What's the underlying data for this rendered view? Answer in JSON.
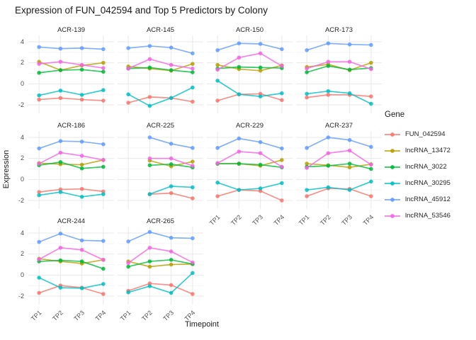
{
  "title": "Expression of FUN_042594 and Top 5 Predictors by Colony",
  "chart_data": {
    "type": "line",
    "title": "Expression of FUN_042594 and Top 5 Predictors by Colony",
    "xlabel": "Timepoint",
    "ylabel": "Expression",
    "legend_title": "Gene",
    "legend_position": "right",
    "grid": true,
    "x_categories": [
      "TP1",
      "TP2",
      "TP3",
      "TP4"
    ],
    "yticks": [
      4,
      2,
      0,
      -2
    ],
    "ylim": [
      -2.8,
      4.6
    ],
    "genes": [
      {
        "name": "FUN_042594",
        "color": "#F8766D"
      },
      {
        "name": "lncRNA_13472",
        "color": "#B79F00"
      },
      {
        "name": "lncRNA_3022",
        "color": "#00BA38"
      },
      {
        "name": "lncRNA_30295",
        "color": "#00BFC4"
      },
      {
        "name": "lncRNA_45912",
        "color": "#619CFF"
      },
      {
        "name": "lncRNA_53546",
        "color": "#F564E3"
      }
    ],
    "facets": [
      {
        "name": "ACR-139",
        "series": {
          "FUN_042594": [
            -1.5,
            -1.35,
            -1.5,
            -1.6
          ],
          "lncRNA_13472": [
            2.1,
            1.3,
            1.75,
            2.0
          ],
          "lncRNA_3022": [
            1.05,
            1.3,
            1.35,
            1.15
          ],
          "lncRNA_30295": [
            -1.1,
            -0.65,
            -1.05,
            -0.6
          ],
          "lncRNA_45912": [
            3.5,
            3.35,
            3.4,
            3.3
          ],
          "lncRNA_53546": [
            1.9,
            2.1,
            1.8,
            1.5
          ]
        }
      },
      {
        "name": "ACR-145",
        "series": {
          "FUN_042594": [
            -1.8,
            -1.25,
            -1.35,
            -1.7
          ],
          "lncRNA_13472": [
            1.65,
            1.45,
            1.25,
            1.9
          ],
          "lncRNA_3022": [
            1.45,
            1.55,
            1.3,
            1.1
          ],
          "lncRNA_30295": [
            -1.0,
            -2.1,
            -1.35,
            -0.35
          ],
          "lncRNA_45912": [
            3.4,
            3.6,
            3.45,
            2.9
          ],
          "lncRNA_53546": [
            1.45,
            2.35,
            1.8,
            1.45
          ]
        }
      },
      {
        "name": "ACR-150",
        "series": {
          "FUN_042594": [
            -1.6,
            -1.0,
            -0.95,
            -1.55
          ],
          "lncRNA_13472": [
            1.8,
            1.4,
            1.25,
            1.75
          ],
          "lncRNA_3022": [
            1.45,
            1.6,
            1.55,
            1.5
          ],
          "lncRNA_30295": [
            0.3,
            -1.0,
            -1.2,
            -0.9
          ],
          "lncRNA_45912": [
            3.2,
            3.85,
            3.8,
            3.3
          ],
          "lncRNA_53546": [
            1.35,
            2.5,
            2.9,
            1.7
          ]
        }
      },
      {
        "name": "ACR-173",
        "series": {
          "FUN_042594": [
            -1.3,
            -1.05,
            -1.05,
            -1.2
          ],
          "lncRNA_13472": [
            1.6,
            1.85,
            1.3,
            2.0
          ],
          "lncRNA_3022": [
            1.1,
            1.7,
            1.35,
            1.5
          ],
          "lncRNA_30295": [
            -0.95,
            -0.7,
            -0.9,
            -1.9
          ],
          "lncRNA_45912": [
            3.2,
            3.85,
            3.75,
            3.7
          ],
          "lncRNA_53546": [
            1.45,
            2.1,
            2.1,
            1.4
          ]
        }
      },
      {
        "name": "ACR-186",
        "series": {
          "FUN_042594": [
            -1.2,
            -0.95,
            -0.9,
            -1.15
          ],
          "lncRNA_13472": [
            1.55,
            1.45,
            1.4,
            1.85
          ],
          "lncRNA_3022": [
            1.35,
            1.65,
            1.05,
            1.2
          ],
          "lncRNA_30295": [
            -1.5,
            -1.2,
            -1.65,
            -1.4
          ],
          "lncRNA_45912": [
            2.95,
            3.65,
            3.6,
            3.35
          ],
          "lncRNA_53546": [
            1.5,
            2.55,
            2.25,
            1.85
          ]
        }
      },
      {
        "name": "ACR-225",
        "series": {
          "FUN_042594": [
            null,
            -1.4,
            -1.3,
            -1.8
          ],
          "lncRNA_13472": [
            null,
            1.8,
            1.25,
            1.7
          ],
          "lncRNA_3022": [
            null,
            1.35,
            1.45,
            1.15
          ],
          "lncRNA_30295": [
            null,
            -1.4,
            -0.65,
            -0.75
          ],
          "lncRNA_45912": [
            null,
            4.0,
            3.4,
            3.0
          ],
          "lncRNA_53546": [
            null,
            2.0,
            2.0,
            1.3
          ]
        }
      },
      {
        "name": "ACR-229",
        "series": {
          "FUN_042594": [
            -1.6,
            -1.0,
            -1.1,
            -2.0
          ],
          "lncRNA_13472": [
            1.5,
            1.5,
            1.3,
            1.85
          ],
          "lncRNA_3022": [
            1.5,
            1.5,
            1.4,
            1.15
          ],
          "lncRNA_30295": [
            -0.3,
            -1.0,
            -0.85,
            -0.35
          ],
          "lncRNA_45912": [
            3.0,
            3.9,
            3.55,
            2.95
          ],
          "lncRNA_53546": [
            1.55,
            2.65,
            2.5,
            1.2
          ]
        }
      },
      {
        "name": "ACR-237",
        "series": {
          "FUN_042594": [
            -1.6,
            -0.85,
            -0.9,
            -1.6
          ],
          "lncRNA_13472": [
            1.5,
            1.35,
            1.15,
            1.45
          ],
          "lncRNA_3022": [
            1.2,
            1.3,
            1.5,
            1.0
          ],
          "lncRNA_30295": [
            -1.0,
            -0.75,
            -1.0,
            -0.2
          ],
          "lncRNA_45912": [
            3.0,
            4.0,
            3.75,
            3.1
          ],
          "lncRNA_53546": [
            1.1,
            2.5,
            2.75,
            1.4
          ]
        }
      },
      {
        "name": "ACR-244",
        "series": {
          "FUN_042594": [
            -1.7,
            -1.0,
            -1.2,
            -1.8
          ],
          "lncRNA_13472": [
            1.55,
            1.3,
            1.1,
            1.45
          ],
          "lncRNA_3022": [
            1.3,
            1.4,
            1.3,
            0.6
          ],
          "lncRNA_30295": [
            -0.25,
            -1.2,
            -1.25,
            -0.85
          ],
          "lncRNA_45912": [
            3.15,
            3.95,
            3.3,
            3.25
          ],
          "lncRNA_53546": [
            1.5,
            2.6,
            2.4,
            1.45
          ]
        }
      },
      {
        "name": "ACR-265",
        "series": {
          "FUN_042594": [
            -1.5,
            -0.8,
            -0.95,
            -1.8
          ],
          "lncRNA_13472": [
            1.3,
            0.8,
            1.0,
            1.05
          ],
          "lncRNA_3022": [
            0.8,
            1.3,
            1.45,
            1.05
          ],
          "lncRNA_30295": [
            -1.65,
            -1.05,
            -1.7,
            0.2
          ],
          "lncRNA_45912": [
            3.2,
            4.1,
            3.55,
            3.5
          ],
          "lncRNA_53546": [
            1.15,
            2.6,
            2.25,
            1.2
          ]
        }
      }
    ],
    "colors": {
      "major_grid": "#e8e8e8",
      "minor_grid": "#f3f3f3",
      "tick_text": "#4d4d4d"
    }
  }
}
